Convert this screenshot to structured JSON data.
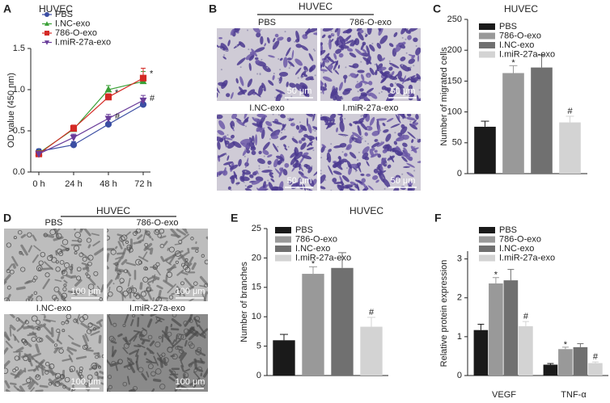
{
  "chart_data": [
    {
      "type": "line",
      "panel": "A",
      "title": "HUVEC",
      "ylabel": "OD value (450 nm)",
      "categories": [
        "0 h",
        "24 h",
        "48 h",
        "72 h"
      ],
      "series": [
        {
          "name": "PBS",
          "color": "#3b4ea3",
          "marker": "circle",
          "values": [
            0.25,
            0.33,
            0.58,
            0.82
          ],
          "errors": [
            0.03,
            0.04,
            0.06,
            0.07
          ]
        },
        {
          "name": "I.NC-exo",
          "color": "#3aa036",
          "marker": "triangle",
          "values": [
            0.23,
            0.52,
            1.0,
            1.1
          ],
          "errors": [
            0.03,
            0.04,
            0.05,
            0.12
          ]
        },
        {
          "name": "786-O-exo",
          "color": "#d42a25",
          "marker": "square",
          "values": [
            0.22,
            0.53,
            0.91,
            1.14
          ],
          "errors": [
            0.02,
            0.04,
            0.04,
            0.12
          ]
        },
        {
          "name": "I.miR-27a-exo",
          "color": "#6a3d9a",
          "marker": "triangle-down",
          "values": [
            0.22,
            0.42,
            0.65,
            0.87
          ],
          "errors": [
            0.02,
            0.04,
            0.05,
            0.06
          ]
        }
      ],
      "ylim": [
        0,
        1.5
      ],
      "yticks": [
        {
          "value": 0,
          "label": "0.0"
        },
        0.5,
        {
          "value": 1,
          "label": "1.0"
        },
        1.5
      ],
      "annotations": [
        {
          "text": "*",
          "series": 2,
          "index": 2
        },
        {
          "text": "*",
          "series": 2,
          "index": 3
        },
        {
          "text": "#",
          "series": 3,
          "index": 2
        },
        {
          "text": "#",
          "series": 3,
          "index": 3
        }
      ]
    },
    {
      "type": "bar",
      "panel": "C",
      "title": "HUVEC",
      "ylabel": "Number of migrated cells",
      "categories": [
        "PBS",
        "786-O-exo",
        "I.NC-exo",
        "I.miR-27a-exo"
      ],
      "values": [
        76,
        163,
        172,
        83
      ],
      "errors": [
        9,
        12,
        20,
        10
      ],
      "colors": [
        "#1a1a1a",
        "#999999",
        "#707070",
        "#d3d3d3"
      ],
      "ylim": [
        0,
        250
      ],
      "yticks": [
        0,
        50,
        100,
        150,
        200,
        250
      ],
      "annotations": [
        {
          "text": "*",
          "index": 1
        },
        {
          "text": "#",
          "index": 3
        }
      ]
    },
    {
      "type": "bar",
      "panel": "E",
      "title": "HUVEC",
      "ylabel": "Number of branches",
      "categories": [
        "PBS",
        "786-O-exo",
        "I.NC-exo",
        "I.miR-27a-exo"
      ],
      "values": [
        6,
        17.3,
        18.3,
        8.3
      ],
      "errors": [
        1,
        1.2,
        2.6,
        1.6
      ],
      "colors": [
        "#1a1a1a",
        "#999999",
        "#707070",
        "#d3d3d3"
      ],
      "ylim": [
        0,
        25
      ],
      "yticks": [
        0,
        5,
        10,
        15,
        20,
        25
      ],
      "annotations": [
        {
          "text": "*",
          "index": 1
        },
        {
          "text": "#",
          "index": 3
        }
      ]
    },
    {
      "type": "grouped-bar",
      "panel": "F",
      "ylabel": "Relative protein expression",
      "categories": [
        "VEGF",
        "TNF-α"
      ],
      "series": [
        {
          "name": "PBS",
          "color": "#1a1a1a",
          "values": [
            1.17,
            0.28
          ],
          "errors": [
            0.15,
            0.03
          ]
        },
        {
          "name": "786-O-exo",
          "color": "#999999",
          "values": [
            2.37,
            0.68
          ],
          "errors": [
            0.15,
            0.05
          ]
        },
        {
          "name": "I.NC-exo",
          "color": "#707070",
          "values": [
            2.45,
            0.73
          ],
          "errors": [
            0.28,
            0.09
          ]
        },
        {
          "name": "I.miR-27a-exo",
          "color": "#d3d3d3",
          "values": [
            1.27,
            0.32
          ],
          "errors": [
            0.12,
            0.03
          ]
        }
      ],
      "ylim": [
        0,
        3.2
      ],
      "yticks": [
        0,
        1,
        2,
        3
      ],
      "annotations": [
        {
          "text": "*",
          "series": 1,
          "index": 0
        },
        {
          "text": "*",
          "series": 1,
          "index": 1
        },
        {
          "text": "#",
          "series": 3,
          "index": 0
        },
        {
          "text": "#",
          "series": 3,
          "index": 1
        }
      ]
    }
  ],
  "micrographs": [
    {
      "panel": "B",
      "title": "HUVEC",
      "images": [
        {
          "label": "PBS",
          "scale": "50 μm"
        },
        {
          "label": "786-O-exo",
          "scale": "50 μm"
        },
        {
          "label": "I.NC-exo",
          "scale": "50 μm"
        },
        {
          "label": "I.miR-27a-exo",
          "scale": "50 μm"
        }
      ]
    },
    {
      "panel": "D",
      "title": "HUVEC",
      "images": [
        {
          "label": "PBS",
          "scale": "100 μm"
        },
        {
          "label": "786-O-exo",
          "scale": "100 μm"
        },
        {
          "label": "I.NC-exo",
          "scale": "100 μm"
        },
        {
          "label": "I.miR-27a-exo",
          "scale": "100 μm"
        }
      ]
    }
  ]
}
